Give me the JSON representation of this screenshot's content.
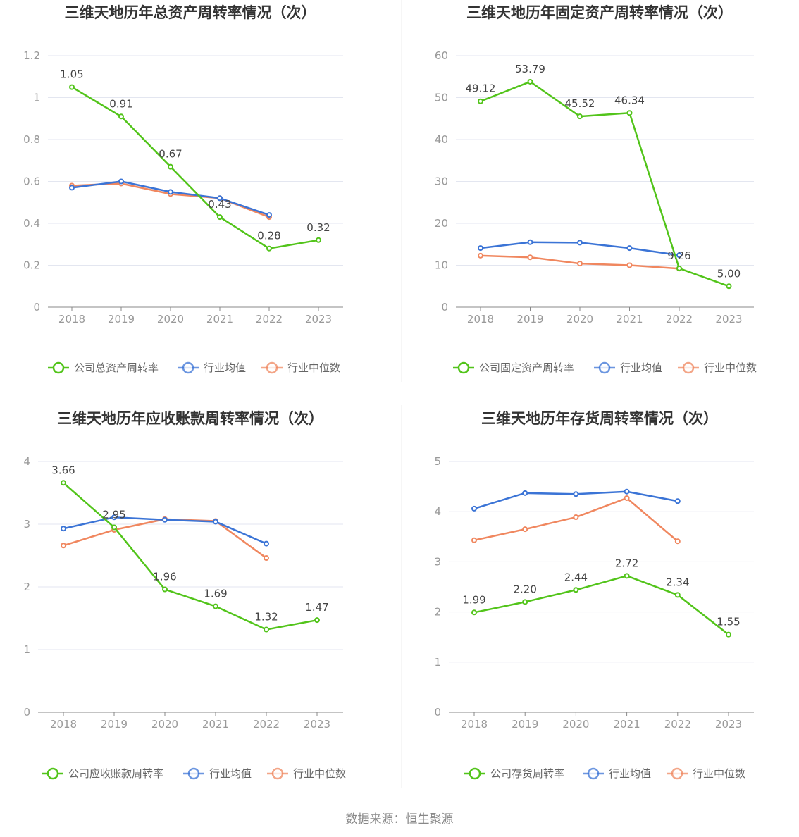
{
  "colors": {
    "company": "#52c41a",
    "mean": "#3b74d6",
    "median": "#f0875f",
    "grid": "#e3e6f0",
    "axis": "#888888"
  },
  "legend": {
    "mean": "行业均值",
    "median": "行业中位数"
  },
  "source": "数据来源：恒生聚源",
  "chart_data": [
    {
      "type": "line",
      "title": "三维天地历年总资产周转率情况（次）",
      "categories": [
        "2018",
        "2019",
        "2020",
        "2021",
        "2022",
        "2023"
      ],
      "ylim": [
        0,
        1.2
      ],
      "yticks": [
        0,
        0.2,
        0.4,
        0.6,
        0.8,
        1,
        1.2
      ],
      "ytick_labels": [
        "0",
        "0.2",
        "0.4",
        "0.6",
        "0.8",
        "1",
        "1.2"
      ],
      "grid": true,
      "legend_position": "bottom",
      "series": [
        {
          "key": "company",
          "name": "公司总资产周转率",
          "values": [
            1.05,
            0.91,
            0.67,
            0.43,
            0.28,
            0.32
          ],
          "labels": [
            "1.05",
            "0.91",
            "0.67",
            "0.43",
            "0.28",
            "0.32"
          ]
        },
        {
          "key": "mean",
          "name": "行业均值",
          "values": [
            0.57,
            0.6,
            0.55,
            0.52,
            0.44,
            null
          ]
        },
        {
          "key": "median",
          "name": "行业中位数",
          "values": [
            0.58,
            0.59,
            0.54,
            0.52,
            0.43,
            null
          ]
        }
      ]
    },
    {
      "type": "line",
      "title": "三维天地历年固定资产周转率情况（次）",
      "categories": [
        "2018",
        "2019",
        "2020",
        "2021",
        "2022",
        "2023"
      ],
      "ylim": [
        0,
        60
      ],
      "yticks": [
        0,
        10,
        20,
        30,
        40,
        50,
        60
      ],
      "ytick_labels": [
        "0",
        "10",
        "20",
        "30",
        "40",
        "50",
        "60"
      ],
      "grid": true,
      "legend_position": "bottom",
      "series": [
        {
          "key": "company",
          "name": "公司固定资产周转率",
          "values": [
            49.12,
            53.79,
            45.52,
            46.34,
            9.26,
            5.0
          ],
          "labels": [
            "49.12",
            "53.79",
            "45.52",
            "46.34",
            "9.26",
            "5.00"
          ]
        },
        {
          "key": "mean",
          "name": "行业均值",
          "values": [
            14.1,
            15.5,
            15.4,
            14.1,
            12.4,
            null
          ]
        },
        {
          "key": "median",
          "name": "行业中位数",
          "values": [
            12.3,
            11.9,
            10.4,
            10.0,
            9.2,
            null
          ]
        }
      ]
    },
    {
      "type": "line",
      "title": "三维天地历年应收账款周转率情况（次）",
      "categories": [
        "2018",
        "2019",
        "2020",
        "2021",
        "2022",
        "2023"
      ],
      "ylim": [
        0,
        4
      ],
      "yticks": [
        0,
        1,
        2,
        3,
        4
      ],
      "ytick_labels": [
        "0",
        "1",
        "2",
        "3",
        "4"
      ],
      "grid": true,
      "legend_position": "bottom",
      "series": [
        {
          "key": "company",
          "name": "公司应收账款周转率",
          "values": [
            3.66,
            2.95,
            1.96,
            1.69,
            1.32,
            1.47
          ],
          "labels": [
            "3.66",
            "2.95",
            "1.96",
            "1.69",
            "1.32",
            "1.47"
          ]
        },
        {
          "key": "mean",
          "name": "行业均值",
          "values": [
            2.93,
            3.11,
            3.07,
            3.04,
            2.69,
            null
          ]
        },
        {
          "key": "median",
          "name": "行业中位数",
          "values": [
            2.66,
            2.91,
            3.08,
            3.05,
            2.46,
            null
          ]
        }
      ]
    },
    {
      "type": "line",
      "title": "三维天地历年存货周转率情况（次）",
      "categories": [
        "2018",
        "2019",
        "2020",
        "2021",
        "2022",
        "2023"
      ],
      "ylim": [
        0,
        5
      ],
      "yticks": [
        0,
        1,
        2,
        3,
        4,
        5
      ],
      "ytick_labels": [
        "0",
        "1",
        "2",
        "3",
        "4",
        "5"
      ],
      "grid": true,
      "legend_position": "bottom",
      "series": [
        {
          "key": "company",
          "name": "公司存货周转率",
          "values": [
            1.99,
            2.2,
            2.44,
            2.72,
            2.34,
            1.55
          ],
          "labels": [
            "1.99",
            "2.20",
            "2.44",
            "2.72",
            "2.34",
            "1.55"
          ]
        },
        {
          "key": "mean",
          "name": "行业均值",
          "values": [
            4.06,
            4.37,
            4.35,
            4.4,
            4.21,
            null
          ]
        },
        {
          "key": "median",
          "name": "行业中位数",
          "values": [
            3.43,
            3.65,
            3.89,
            4.27,
            3.41,
            null
          ]
        }
      ]
    }
  ]
}
